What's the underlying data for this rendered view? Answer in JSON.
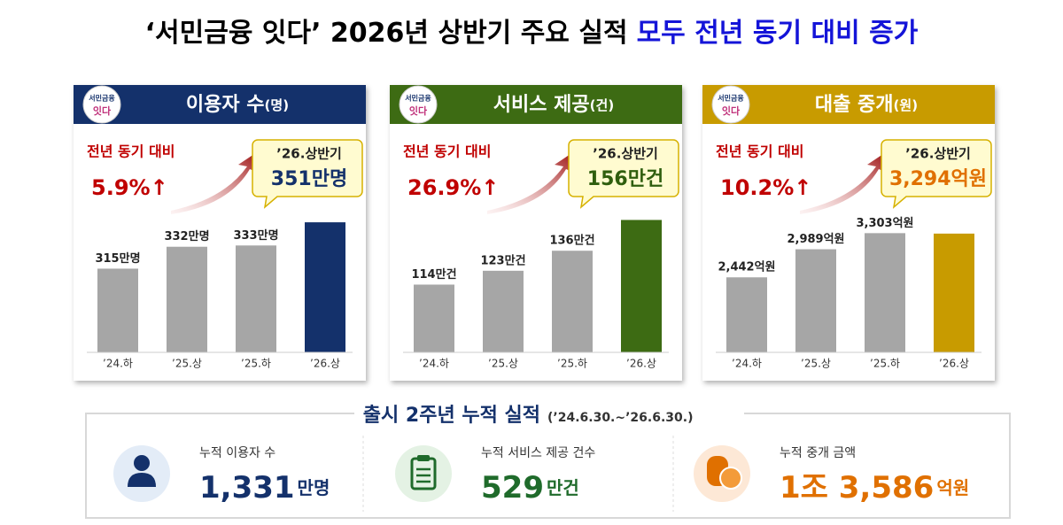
{
  "title": {
    "main": "‘서민금융 잇다’  2026년 상반기 주요 실적",
    "highlight": "모두 전년 동기 대비 증가"
  },
  "logo": {
    "line1": "서민금융",
    "line2": "잇다"
  },
  "chart_data": [
    {
      "type": "bar",
      "title": "이용자 수",
      "unit": "(명)",
      "header_color": "#14316b",
      "color": "#a6a6a6",
      "highlight_color": "#14316b",
      "label_color": "#14316b",
      "categories": [
        "’24.하",
        "’25.상",
        "’25.하",
        "’26.상"
      ],
      "values": [
        315,
        332,
        333,
        351
      ],
      "value_labels": [
        "315만명",
        "332만명",
        "333만명",
        "351만명"
      ],
      "ylim": [
        250,
        360
      ],
      "annotation": "전년 동기 대비",
      "change": "5.9%↑",
      "callout_label": "’26.상반기"
    },
    {
      "type": "bar",
      "title": "서비스 제공",
      "unit": "(건)",
      "header_color": "#3d6b13",
      "color": "#a6a6a6",
      "highlight_color": "#3d6b13",
      "label_color": "#2f5e0e",
      "categories": [
        "’24.하",
        "’25.상",
        "’25.하",
        "’26.상"
      ],
      "values": [
        114,
        123,
        136,
        156
      ],
      "value_labels": [
        "114만건",
        "123만건",
        "136만건",
        "156만건"
      ],
      "ylim": [
        70,
        162
      ],
      "annotation": "전년 동기 대비",
      "change": "26.9%↑",
      "callout_label": "’26.상반기"
    },
    {
      "type": "bar",
      "title": "대출 중개",
      "unit": "(원)",
      "header_color": "#c89b00",
      "color": "#a6a6a6",
      "highlight_color": "#c89b00",
      "label_color": "#e07000",
      "categories": [
        "’24.하",
        "’25.상",
        "’25.하",
        "’26.상"
      ],
      "values": [
        2442,
        2989,
        3303,
        3294
      ],
      "value_labels": [
        "2,442억원",
        "2,989억원",
        "3,303억원",
        "3,294억원"
      ],
      "ylim": [
        980,
        3740
      ],
      "annotation": "전년 동기 대비",
      "change": "10.2%↑",
      "callout_label": "’26.상반기"
    }
  ],
  "summary": {
    "title": "출시 2주년 누적 실적",
    "period": "(’24.6.30.~’26.6.30.)",
    "items": [
      {
        "label": "누적 이용자 수",
        "value": "1,331",
        "unit": "만명",
        "color": "#14316b"
      },
      {
        "label": "누적 서비스 제공 건수",
        "value": "529",
        "unit": "만건",
        "color": "#1f6b2b"
      },
      {
        "label": "누적 중개 금액",
        "value": "1조 3,586",
        "unit": "억원",
        "color": "#e07000"
      }
    ]
  }
}
